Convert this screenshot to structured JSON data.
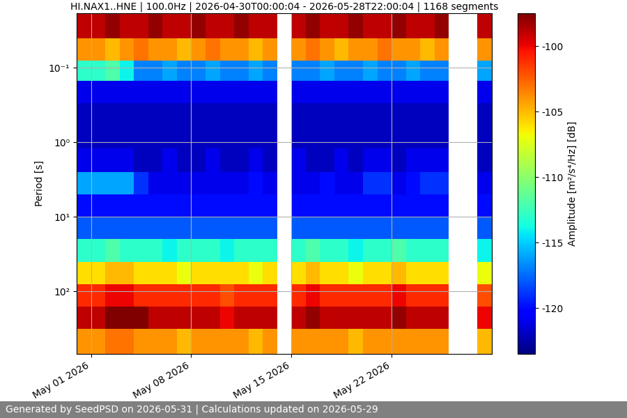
{
  "chart_data": {
    "type": "heatmap",
    "title": "HI.NAX1..HNE | 100.0Hz | 2026-04-30T00:00:04 - 2026-05-28T22:00:04 | 1168 segments",
    "y_label": "Period [s]",
    "colorbar_label": "Amplitude [m²/s⁴/Hz] [dB]",
    "footer": "Generated by SeedPSD on 2026-05-31 | Calculations updated on 2026-05-29",
    "log": "y",
    "grid": true,
    "xlim": [
      "2026-04-30T00:00",
      "2026-05-29T00:00"
    ],
    "xticks": [
      {
        "value": "2026-05-01",
        "label": "May 01 2026"
      },
      {
        "value": "2026-05-08",
        "label": "May 08 2026"
      },
      {
        "value": "2026-05-15",
        "label": "May 15 2026"
      },
      {
        "value": "2026-05-22",
        "label": "May 22 2026"
      }
    ],
    "ylim": [
      690,
      0.0186
    ],
    "yticks": [
      {
        "value": 0.1,
        "label": "10⁻¹"
      },
      {
        "value": 1,
        "label": "10⁰"
      },
      {
        "value": 10,
        "label": "10¹"
      },
      {
        "value": 100,
        "label": "10²"
      }
    ],
    "x_edges": [
      "2026-04-30",
      "2026-05-01",
      "2026-05-02",
      "2026-05-03",
      "2026-05-04",
      "2026-05-05",
      "2026-05-06",
      "2026-05-07",
      "2026-05-08",
      "2026-05-09",
      "2026-05-10",
      "2026-05-11",
      "2026-05-12",
      "2026-05-13",
      "2026-05-14",
      "2026-05-15",
      "2026-05-16",
      "2026-05-17",
      "2026-05-18",
      "2026-05-19",
      "2026-05-20",
      "2026-05-21",
      "2026-05-22",
      "2026-05-23",
      "2026-05-24",
      "2026-05-25",
      "2026-05-26",
      "2026-05-27",
      "2026-05-28",
      "2026-05-29"
    ],
    "y_edges": [
      0.0186,
      0.04,
      0.08,
      0.15,
      0.3,
      0.6,
      1.2,
      2.5,
      5,
      10,
      20,
      40,
      80,
      160,
      320,
      690
    ],
    "cells": [
      [
        -99,
        -99,
        -98,
        -99,
        -99,
        -98,
        -99,
        -99,
        -98,
        -99,
        -99,
        -98,
        -99,
        -99,
        null,
        -99,
        -98,
        -99,
        -99,
        -98,
        -99,
        -99,
        -98,
        -99,
        -99,
        -98,
        null,
        null,
        -99
      ],
      [
        -104,
        -104,
        -105,
        -104,
        -103,
        -104,
        -104,
        -105,
        -104,
        -103,
        -104,
        -104,
        -105,
        -104,
        null,
        -104,
        -103,
        -104,
        -105,
        -104,
        -104,
        -103,
        -104,
        -104,
        -105,
        -104,
        null,
        null,
        -104
      ],
      [
        -113,
        -113,
        -112,
        -114,
        -117,
        -117,
        -116,
        -117,
        -117,
        -116,
        -117,
        -117,
        -116,
        -117,
        null,
        -117,
        -117,
        -116,
        -117,
        -117,
        -116,
        -117,
        -117,
        -116,
        -117,
        -117,
        null,
        null,
        -116
      ],
      [
        -121,
        -121,
        -121,
        -121,
        -121,
        -121,
        -121,
        -121,
        -121,
        -121,
        -121,
        -121,
        -121,
        -121,
        null,
        -121,
        -121,
        -121,
        -121,
        -121,
        -121,
        -121,
        -121,
        -121,
        -121,
        -121,
        null,
        null,
        -121
      ],
      [
        -122,
        -122,
        -122,
        -122,
        -122,
        -122,
        -122,
        -122,
        -122,
        -122,
        -122,
        -122,
        -122,
        -122,
        null,
        -122,
        -122,
        -122,
        -122,
        -122,
        -122,
        -122,
        -122,
        -122,
        -122,
        -122,
        null,
        null,
        -122
      ],
      [
        -122,
        -122,
        -122,
        -122,
        -122,
        -122,
        -122,
        -122,
        -122,
        -122,
        -122,
        -122,
        -122,
        -122,
        null,
        -122,
        -122,
        -122,
        -122,
        -122,
        -122,
        -122,
        -122,
        -122,
        -122,
        -122,
        null,
        null,
        -122
      ],
      [
        -121,
        -121,
        -121,
        -121,
        -122,
        -122,
        -121,
        -122,
        -122,
        -121,
        -122,
        -122,
        -121,
        -122,
        null,
        -121,
        -122,
        -122,
        -121,
        -122,
        -121,
        -121,
        -122,
        -121,
        -121,
        -121,
        null,
        null,
        -122
      ],
      [
        -116,
        -116,
        -116,
        -116,
        -119,
        -121,
        -121,
        -121,
        -121,
        -121,
        -121,
        -121,
        -120,
        -121,
        null,
        -121,
        -121,
        -120,
        -121,
        -121,
        -119,
        -119,
        -121,
        -120,
        -119,
        -119,
        null,
        null,
        -121
      ],
      [
        -120,
        -120,
        -120,
        -120,
        -120,
        -120,
        -120,
        -120,
        -120,
        -120,
        -120,
        -120,
        -120,
        -120,
        null,
        -120,
        -120,
        -120,
        -120,
        -120,
        -120,
        -120,
        -120,
        -120,
        -120,
        -120,
        null,
        null,
        -120
      ],
      [
        -118,
        -118,
        -118,
        -118,
        -118,
        -118,
        -118,
        -118,
        -118,
        -118,
        -118,
        -118,
        -118,
        -118,
        null,
        -118,
        -118,
        -118,
        -118,
        -118,
        -118,
        -118,
        -118,
        -118,
        -118,
        -118,
        null,
        null,
        -118
      ],
      [
        -113,
        -113,
        -112,
        -113,
        -113,
        -113,
        -114,
        -113,
        -113,
        -113,
        -114,
        -113,
        -113,
        -113,
        null,
        -113,
        -112,
        -113,
        -113,
        -114,
        -113,
        -113,
        -112,
        -113,
        -113,
        -113,
        null,
        null,
        -114
      ],
      [
        -106,
        -106,
        -105,
        -105,
        -106,
        -106,
        -106,
        -107,
        -106,
        -106,
        -106,
        -106,
        -107,
        -106,
        null,
        -106,
        -105,
        -106,
        -106,
        -107,
        -106,
        -106,
        -105,
        -106,
        -106,
        -106,
        null,
        null,
        -107
      ],
      [
        -101,
        -101,
        -100,
        -100,
        -101,
        -101,
        -101,
        -101,
        -101,
        -101,
        -102,
        -101,
        -101,
        -101,
        null,
        -101,
        -100,
        -101,
        -101,
        -101,
        -101,
        -101,
        -100,
        -101,
        -101,
        -101,
        null,
        null,
        -102
      ],
      [
        -99,
        -99,
        -97,
        -97,
        -97,
        -99,
        -99,
        -99,
        -99,
        -99,
        -100,
        -99,
        -99,
        -99,
        null,
        -99,
        -98,
        -99,
        -99,
        -99,
        -99,
        -99,
        -98,
        -99,
        -99,
        -99,
        null,
        null,
        -100
      ],
      [
        -104,
        -104,
        -103,
        -103,
        -104,
        -104,
        -104,
        -105,
        -104,
        -104,
        -104,
        -104,
        -105,
        -104,
        null,
        -104,
        -104,
        -104,
        -104,
        -105,
        -104,
        -104,
        -104,
        -104,
        -104,
        -104,
        null,
        null,
        -105
      ]
    ],
    "colorbar": {
      "range": [
        -123.5,
        -97.5
      ],
      "ticks": [
        -120,
        -115,
        -110,
        -105,
        -100
      ]
    }
  }
}
